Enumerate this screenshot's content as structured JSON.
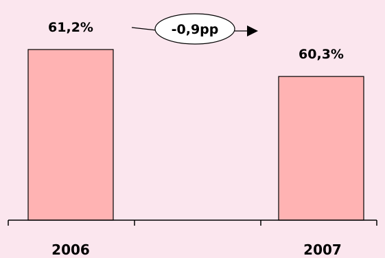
{
  "chart_data": {
    "type": "bar",
    "categories": [
      "2006",
      "2007"
    ],
    "values": [
      61.2,
      60.3
    ],
    "value_labels": [
      "61,2%",
      "60,3%"
    ],
    "title": "",
    "xlabel": "",
    "ylabel": "",
    "grid": false,
    "legend": "none",
    "annotation": {
      "text": "-0,9pp",
      "shape": "ellipse",
      "arrow": "left-to-right"
    },
    "colors": {
      "background": "#fbe6ee",
      "bar_fill": "#ffb3b3",
      "bar_stroke": "#000000"
    }
  }
}
